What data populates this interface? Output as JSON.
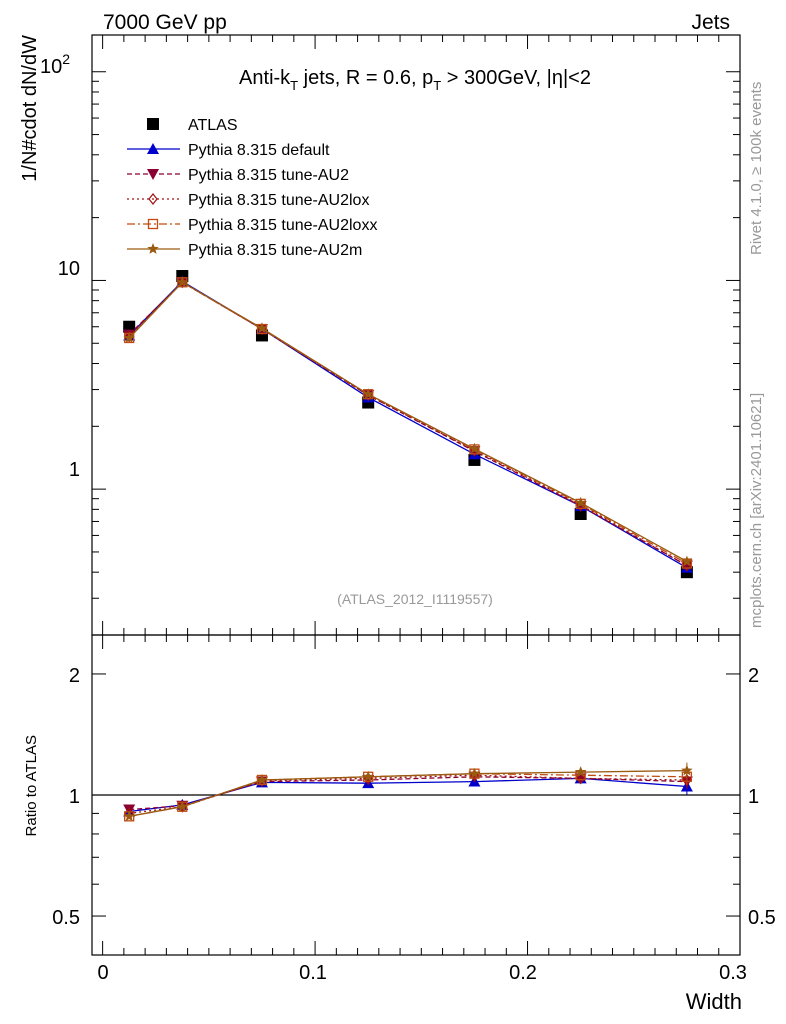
{
  "header": {
    "left": "7000 GeV pp",
    "right": "Jets"
  },
  "side_labels": {
    "rivet": "Rivet 4.1.0, ≥ 100k events",
    "mcplots": "mcplots.cern.ch [arXiv:2401.10621]"
  },
  "chart_data": [
    {
      "type": "line",
      "panel": "main",
      "title_parts": {
        "a": "Anti-k",
        "a_sub": "T",
        "b": " jets, R = 0.6, p",
        "b_sub": "T",
        "c": " > 300GeV, |",
        "eta": "η",
        "d": "|<2"
      },
      "ylabel": "1/N#cdot dN/dW",
      "yscale": "log",
      "ylim": [
        0.2,
        150
      ],
      "xlim": [
        -0.005,
        0.3
      ],
      "ytick_labels": {
        "t1": "1",
        "t10": "10",
        "t100_base": "10",
        "t100_exp": "2"
      },
      "watermark": "(ATLAS_2012_I1119557)",
      "x": [
        0.0125,
        0.0375,
        0.075,
        0.125,
        0.175,
        0.225,
        0.275
      ],
      "series": [
        {
          "name": "ATLAS",
          "color": "#000000",
          "marker": "square",
          "values": [
            6.0,
            10.5,
            5.45,
            2.6,
            1.38,
            0.76,
            0.4
          ]
        },
        {
          "name": "Pythia 8.315 default",
          "color": "#0000cc",
          "marker": "triangle",
          "dash": "",
          "values": [
            5.45,
            9.9,
            5.85,
            2.75,
            1.47,
            0.83,
            0.42
          ]
        },
        {
          "name": "Pythia 8.315 tune-AU2",
          "color": "#8b0033",
          "marker": "triangle-down",
          "dash": "5,3",
          "values": [
            5.5,
            9.8,
            5.85,
            2.82,
            1.52,
            0.83,
            0.43
          ]
        },
        {
          "name": "Pythia 8.315 tune-AU2lox",
          "color": "#a01010",
          "marker": "diamond",
          "dash": "2,3",
          "values": [
            5.4,
            9.8,
            5.85,
            2.82,
            1.53,
            0.84,
            0.43
          ]
        },
        {
          "name": "Pythia 8.315 tune-AU2loxx",
          "color": "#c04a10",
          "marker": "square-open",
          "dash": "8,3,2,3",
          "values": [
            5.3,
            9.8,
            5.85,
            2.85,
            1.55,
            0.85,
            0.44
          ]
        },
        {
          "name": "Pythia 8.315 tune-AU2m",
          "color": "#9a5a10",
          "marker": "star",
          "dash": "",
          "values": [
            5.3,
            9.8,
            5.9,
            2.85,
            1.56,
            0.86,
            0.45
          ]
        }
      ]
    },
    {
      "type": "line",
      "panel": "ratio",
      "ylabel": "Ratio to ATLAS",
      "xlabel": "Width",
      "yscale": "log",
      "ylim": [
        0.4,
        2.5
      ],
      "xlim": [
        -0.005,
        0.3
      ],
      "ytick_labels": [
        "0.5",
        "1",
        "2"
      ],
      "xtick_labels": [
        "0",
        "0.1",
        "0.2",
        "0.3"
      ],
      "x": [
        0.0125,
        0.0375,
        0.075,
        0.125,
        0.175,
        0.225,
        0.275
      ],
      "series": [
        {
          "name": "Pythia 8.315 default",
          "values": [
            0.91,
            0.945,
            1.075,
            1.07,
            1.08,
            1.1,
            1.05
          ]
        },
        {
          "name": "Pythia 8.315 tune-AU2",
          "values": [
            0.92,
            0.94,
            1.08,
            1.09,
            1.11,
            1.1,
            1.08
          ]
        },
        {
          "name": "Pythia 8.315 tune-AU2lox",
          "values": [
            0.9,
            0.935,
            1.085,
            1.1,
            1.12,
            1.1,
            1.09
          ]
        },
        {
          "name": "Pythia 8.315 tune-AU2loxx",
          "values": [
            0.885,
            0.935,
            1.09,
            1.11,
            1.13,
            1.12,
            1.11
          ]
        },
        {
          "name": "Pythia 8.315 tune-AU2m",
          "values": [
            0.885,
            0.935,
            1.09,
            1.11,
            1.13,
            1.14,
            1.15
          ]
        }
      ]
    }
  ]
}
